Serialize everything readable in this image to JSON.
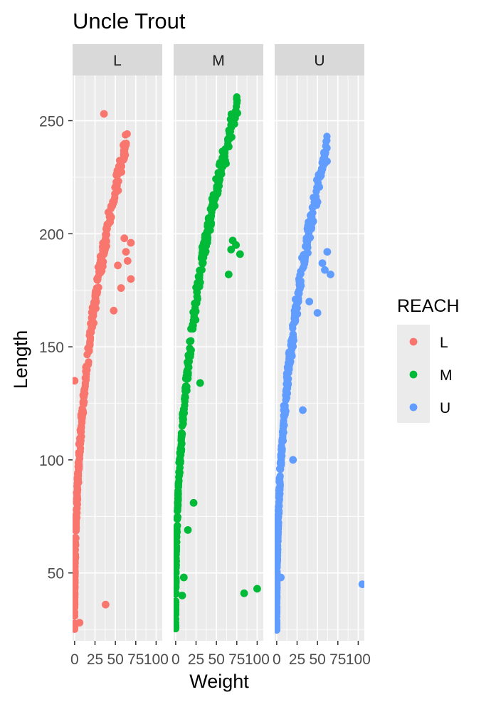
{
  "chart_data": {
    "type": "scatter",
    "title": "Uncle Trout",
    "xlabel": "Weight",
    "ylabel": "Length",
    "xlim": [
      -2.5,
      107.5
    ],
    "ylim": [
      20,
      270
    ],
    "x_ticks": [
      0,
      25,
      50,
      75,
      100
    ],
    "x_tick_labels": [
      "0",
      "25",
      "50",
      "75",
      "100"
    ],
    "y_ticks": [
      50,
      100,
      150,
      200,
      250
    ],
    "y_tick_labels": [
      "50",
      "100",
      "150",
      "200",
      "250"
    ],
    "grid": true,
    "legend": {
      "title": "REACH",
      "placement": "right",
      "entries": [
        {
          "label": "L",
          "color": "#F8766D"
        },
        {
          "label": "M",
          "color": "#00BA38"
        },
        {
          "label": "U",
          "color": "#619CFF"
        }
      ]
    },
    "facets": [
      {
        "label": "L",
        "color": "#F8766D",
        "outliers": [
          {
            "x": 36,
            "y": 253
          },
          {
            "x": 0,
            "y": 135
          },
          {
            "x": 38,
            "y": 36
          },
          {
            "x": 6,
            "y": 28
          },
          {
            "x": 69,
            "y": 196
          },
          {
            "x": 63,
            "y": 192
          },
          {
            "x": 61,
            "y": 198
          },
          {
            "x": 65,
            "y": 188
          },
          {
            "x": 69,
            "y": 180
          },
          {
            "x": 53,
            "y": 186
          },
          {
            "x": 57,
            "y": 176
          },
          {
            "x": 48,
            "y": 166
          }
        ]
      },
      {
        "label": "M",
        "color": "#00BA38",
        "outliers": [
          {
            "x": 100,
            "y": 43
          },
          {
            "x": 84,
            "y": 41
          },
          {
            "x": 22,
            "y": 81
          },
          {
            "x": 15,
            "y": 69
          },
          {
            "x": 10,
            "y": 48
          },
          {
            "x": 70,
            "y": 197
          },
          {
            "x": 74,
            "y": 195
          },
          {
            "x": 79,
            "y": 191
          },
          {
            "x": 68,
            "y": 193
          },
          {
            "x": 65,
            "y": 182
          },
          {
            "x": 30,
            "y": 134
          },
          {
            "x": 8,
            "y": 40
          }
        ]
      },
      {
        "label": "U",
        "color": "#619CFF",
        "outliers": [
          {
            "x": 105,
            "y": 45
          },
          {
            "x": 62,
            "y": 192
          },
          {
            "x": 66,
            "y": 182
          },
          {
            "x": 56,
            "y": 187
          },
          {
            "x": 59,
            "y": 184
          },
          {
            "x": 32,
            "y": 122
          },
          {
            "x": 40,
            "y": 170
          },
          {
            "x": 15,
            "y": 140
          },
          {
            "x": 5,
            "y": 48
          },
          {
            "x": 20,
            "y": 100
          },
          {
            "x": 50,
            "y": 165
          }
        ]
      }
    ]
  }
}
